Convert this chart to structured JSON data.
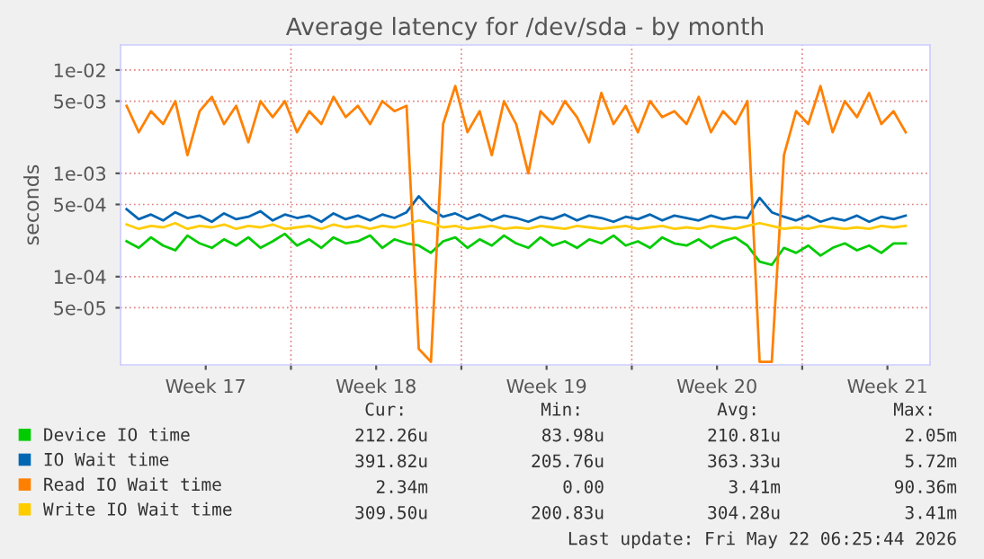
{
  "chart_data": {
    "type": "line",
    "title": "Average latency for /dev/sda - by month",
    "ylabel": "seconds",
    "log": "y",
    "xlim": [
      "2026-04-20T00:00",
      "2026-05-23T06:00"
    ],
    "xticks": [
      {
        "value": "2026-04-23T12:00",
        "label": "Week 17"
      },
      {
        "value": "2026-04-27T00:00",
        "label": null
      },
      {
        "value": "2026-04-30T12:00",
        "label": "Week 18"
      },
      {
        "value": "2026-05-04T00:00",
        "label": null
      },
      {
        "value": "2026-05-07T12:00",
        "label": "Week 19"
      },
      {
        "value": "2026-05-11T00:00",
        "label": null
      },
      {
        "value": "2026-05-14T12:00",
        "label": "Week 20"
      },
      {
        "value": "2026-05-18T00:00",
        "label": null
      },
      {
        "value": "2026-05-21T12:00",
        "label": "Week 21"
      }
    ],
    "ylim": [
      1.4e-05,
      0.0175
    ],
    "yticks": [
      {
        "value": 5e-05,
        "label": "5e-05"
      },
      {
        "value": 0.0001,
        "label": "1e-04"
      },
      {
        "value": 0.0005,
        "label": "5e-04"
      },
      {
        "value": 0.001,
        "label": "1e-03"
      },
      {
        "value": 0.005,
        "label": "5e-03"
      },
      {
        "value": 0.01,
        "label": "1e-02"
      }
    ],
    "grid": true,
    "legend": "bottom left",
    "x": [
      "2026-04-20T06:00",
      "2026-04-20T18:00",
      "2026-04-21T06:00",
      "2026-04-21T18:00",
      "2026-04-22T06:00",
      "2026-04-22T18:00",
      "2026-04-23T06:00",
      "2026-04-23T18:00",
      "2026-04-24T06:00",
      "2026-04-24T18:00",
      "2026-04-25T06:00",
      "2026-04-25T18:00",
      "2026-04-26T06:00",
      "2026-04-26T18:00",
      "2026-04-27T06:00",
      "2026-04-27T18:00",
      "2026-04-28T06:00",
      "2026-04-28T18:00",
      "2026-04-29T06:00",
      "2026-04-29T18:00",
      "2026-04-30T06:00",
      "2026-04-30T18:00",
      "2026-05-01T06:00",
      "2026-05-01T18:00",
      "2026-05-02T06:00",
      "2026-05-02T18:00",
      "2026-05-03T06:00",
      "2026-05-03T18:00",
      "2026-05-04T06:00",
      "2026-05-04T18:00",
      "2026-05-05T06:00",
      "2026-05-05T18:00",
      "2026-05-06T06:00",
      "2026-05-06T18:00",
      "2026-05-07T06:00",
      "2026-05-07T18:00",
      "2026-05-08T06:00",
      "2026-05-08T18:00",
      "2026-05-09T06:00",
      "2026-05-09T18:00",
      "2026-05-10T06:00",
      "2026-05-10T18:00",
      "2026-05-11T06:00",
      "2026-05-11T18:00",
      "2026-05-12T06:00",
      "2026-05-12T18:00",
      "2026-05-13T06:00",
      "2026-05-13T18:00",
      "2026-05-14T06:00",
      "2026-05-14T18:00",
      "2026-05-15T06:00",
      "2026-05-15T18:00",
      "2026-05-16T06:00",
      "2026-05-16T18:00",
      "2026-05-17T06:00",
      "2026-05-17T18:00",
      "2026-05-18T06:00",
      "2026-05-18T18:00",
      "2026-05-19T06:00",
      "2026-05-19T18:00",
      "2026-05-20T06:00",
      "2026-05-20T18:00",
      "2026-05-21T06:00",
      "2026-05-21T18:00",
      "2026-05-22T06:00"
    ],
    "series": [
      {
        "name": "Device IO time",
        "color": "#00cc00",
        "values": [
          0.00022,
          0.00019,
          0.00024,
          0.0002,
          0.00018,
          0.00025,
          0.00021,
          0.00019,
          0.00023,
          0.0002,
          0.00024,
          0.00019,
          0.00022,
          0.00026,
          0.0002,
          0.00023,
          0.00019,
          0.00024,
          0.00021,
          0.00022,
          0.00025,
          0.00019,
          0.00023,
          0.00021,
          0.0002,
          0.00017,
          0.00022,
          0.00024,
          0.00019,
          0.00023,
          0.0002,
          0.00025,
          0.00021,
          0.00019,
          0.00024,
          0.0002,
          0.00022,
          0.00019,
          0.00023,
          0.00021,
          0.00025,
          0.0002,
          0.00022,
          0.00019,
          0.00024,
          0.00021,
          0.0002,
          0.00023,
          0.00019,
          0.00022,
          0.00024,
          0.0002,
          0.00014,
          0.00013,
          0.00019,
          0.00017,
          0.0002,
          0.00016,
          0.00019,
          0.00021,
          0.00018,
          0.0002,
          0.00017,
          0.00021,
          0.00021
        ]
      },
      {
        "name": "IO Wait time",
        "color": "#0066b3",
        "values": [
          0.00045,
          0.00036,
          0.0004,
          0.00035,
          0.00042,
          0.00037,
          0.00039,
          0.00034,
          0.00041,
          0.00036,
          0.00038,
          0.00043,
          0.00035,
          0.0004,
          0.00037,
          0.00039,
          0.00034,
          0.00041,
          0.00036,
          0.00039,
          0.00035,
          0.0004,
          0.00037,
          0.00042,
          0.0006,
          0.00045,
          0.00038,
          0.00041,
          0.00036,
          0.0004,
          0.00035,
          0.00039,
          0.00037,
          0.00034,
          0.00038,
          0.00036,
          0.0004,
          0.00035,
          0.00039,
          0.00037,
          0.00034,
          0.00038,
          0.00036,
          0.0004,
          0.00035,
          0.00039,
          0.00037,
          0.00035,
          0.00039,
          0.00036,
          0.00038,
          0.00037,
          0.00058,
          0.00042,
          0.00038,
          0.00035,
          0.00039,
          0.00034,
          0.00037,
          0.00035,
          0.00039,
          0.00034,
          0.00038,
          0.00036,
          0.00039
        ]
      },
      {
        "name": "Read IO Wait time",
        "color": "#ff8000",
        "values": [
          0.0045,
          0.0025,
          0.004,
          0.003,
          0.005,
          0.0015,
          0.004,
          0.0055,
          0.003,
          0.0045,
          0.002,
          0.005,
          0.0035,
          0.005,
          0.0025,
          0.004,
          0.003,
          0.0055,
          0.0035,
          0.0045,
          0.003,
          0.005,
          0.004,
          0.0045,
          2e-05,
          1.5e-05,
          0.003,
          0.007,
          0.0025,
          0.004,
          0.0015,
          0.005,
          0.003,
          0.001,
          0.004,
          0.003,
          0.005,
          0.0035,
          0.002,
          0.006,
          0.003,
          0.0045,
          0.0025,
          0.005,
          0.0035,
          0.004,
          0.003,
          0.0055,
          0.0025,
          0.004,
          0.003,
          0.005,
          1.5e-05,
          1.5e-05,
          0.0015,
          0.004,
          0.003,
          0.007,
          0.0025,
          0.005,
          0.0035,
          0.006,
          0.003,
          0.004,
          0.0025
        ]
      },
      {
        "name": "Write IO Wait time",
        "color": "#ffcc00",
        "values": [
          0.00032,
          0.00029,
          0.00031,
          0.0003,
          0.00033,
          0.00029,
          0.00031,
          0.0003,
          0.00032,
          0.00029,
          0.00031,
          0.0003,
          0.00032,
          0.00029,
          0.0003,
          0.00031,
          0.00029,
          0.00032,
          0.0003,
          0.00031,
          0.00029,
          0.00031,
          0.0003,
          0.00032,
          0.00035,
          0.00033,
          0.0003,
          0.00031,
          0.00029,
          0.0003,
          0.00031,
          0.00029,
          0.0003,
          0.00029,
          0.00031,
          0.0003,
          0.00029,
          0.00031,
          0.0003,
          0.00029,
          0.0003,
          0.00031,
          0.00029,
          0.0003,
          0.00031,
          0.00029,
          0.0003,
          0.00029,
          0.00031,
          0.0003,
          0.00029,
          0.00031,
          0.00033,
          0.00031,
          0.00029,
          0.0003,
          0.00029,
          0.00031,
          0.0003,
          0.00029,
          0.0003,
          0.00029,
          0.00031,
          0.0003,
          0.00031
        ]
      }
    ],
    "annotations": [
      "Cur:",
      "Min:",
      "Avg:",
      "Max:",
      "212.26u",
      "83.98u",
      "210.81u",
      "2.05m",
      "391.82u",
      "205.76u",
      "363.33u",
      "5.72m",
      "2.34m",
      "0.00",
      "3.41m",
      "90.36m",
      "309.50u",
      "200.83u",
      "304.28u",
      "3.41m",
      "Last update: Fri May 22 06:25:44 2026"
    ]
  }
}
